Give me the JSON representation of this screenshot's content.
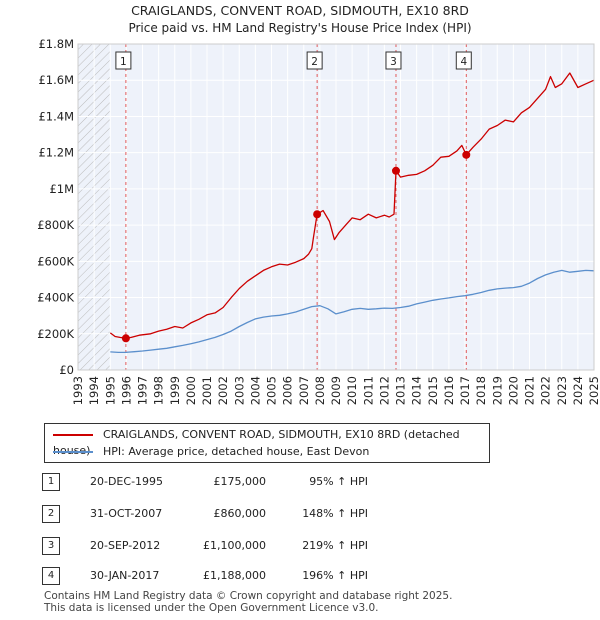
{
  "chart_data": {
    "type": "line",
    "title": "CRAIGLANDS, CONVENT ROAD, SIDMOUTH, EX10 8RD",
    "subtitle": "Price paid vs. HM Land Registry's House Price Index (HPI)",
    "xlabel": "",
    "ylabel": "",
    "xlim": [
      1993,
      2025
    ],
    "ylim": [
      0,
      1800000
    ],
    "grid": true,
    "x_ticks": [
      "1993",
      "1994",
      "1995",
      "1996",
      "1997",
      "1998",
      "1999",
      "2000",
      "2001",
      "2002",
      "2003",
      "2004",
      "2005",
      "2006",
      "2007",
      "2008",
      "2009",
      "2010",
      "2011",
      "2012",
      "2013",
      "2014",
      "2015",
      "2016",
      "2017",
      "2018",
      "2019",
      "2020",
      "2021",
      "2022",
      "2023",
      "2024",
      "2025"
    ],
    "y_ticks": [
      {
        "value": 0,
        "label": "£0"
      },
      {
        "value": 200000,
        "label": "£200K"
      },
      {
        "value": 400000,
        "label": "£400K"
      },
      {
        "value": 600000,
        "label": "£600K"
      },
      {
        "value": 800000,
        "label": "£800K"
      },
      {
        "value": 1000000,
        "label": "£1M"
      },
      {
        "value": 1200000,
        "label": "£1.2M"
      },
      {
        "value": 1400000,
        "label": "£1.4M"
      },
      {
        "value": 1600000,
        "label": "£1.6M"
      },
      {
        "value": 1800000,
        "label": "£1.8M"
      }
    ],
    "hatched_until": 1995,
    "series": [
      {
        "name": "CRAIGLANDS, CONVENT ROAD, SIDMOUTH, EX10 8RD (detached house)",
        "color": "#cc0000",
        "x": [
          1995.0,
          1995.3,
          1995.6,
          1995.97,
          1996.3,
          1996.8,
          1997.5,
          1998.0,
          1998.5,
          1999.0,
          1999.5,
          2000.0,
          2000.5,
          2001.0,
          2001.5,
          2002.0,
          2002.5,
          2003.0,
          2003.5,
          2004.0,
          2004.5,
          2005.0,
          2005.5,
          2006.0,
          2006.5,
          2007.0,
          2007.3,
          2007.5,
          2007.6,
          2007.83,
          2008.2,
          2008.6,
          2008.9,
          2009.2,
          2009.6,
          2010.0,
          2010.5,
          2011.0,
          2011.5,
          2012.0,
          2012.3,
          2012.6,
          2012.72,
          2013.0,
          2013.5,
          2014.0,
          2014.5,
          2015.0,
          2015.5,
          2016.0,
          2016.5,
          2016.8,
          2017.08,
          2017.5,
          2018.0,
          2018.5,
          2019.0,
          2019.5,
          2020.0,
          2020.5,
          2021.0,
          2021.5,
          2022.0,
          2022.3,
          2022.6,
          2023.0,
          2023.5,
          2024.0,
          2024.5,
          2025.0
        ],
        "values": [
          205000,
          185000,
          180000,
          175000,
          180000,
          192000,
          200000,
          215000,
          225000,
          240000,
          232000,
          260000,
          280000,
          305000,
          315000,
          345000,
          400000,
          450000,
          490000,
          520000,
          550000,
          570000,
          585000,
          580000,
          595000,
          615000,
          640000,
          670000,
          730000,
          860000,
          880000,
          820000,
          720000,
          760000,
          800000,
          840000,
          830000,
          860000,
          840000,
          855000,
          845000,
          860000,
          1100000,
          1065000,
          1075000,
          1080000,
          1100000,
          1130000,
          1175000,
          1180000,
          1210000,
          1240000,
          1188000,
          1230000,
          1275000,
          1330000,
          1350000,
          1380000,
          1370000,
          1420000,
          1450000,
          1500000,
          1550000,
          1620000,
          1560000,
          1580000,
          1640000,
          1560000,
          1580000,
          1600000
        ]
      },
      {
        "name": "HPI: Average price, detached house, East Devon",
        "color": "#5b8fcc",
        "x": [
          1995.0,
          1995.5,
          1996.0,
          1996.5,
          1997.0,
          1997.5,
          1998.0,
          1998.5,
          1999.0,
          1999.5,
          2000.0,
          2000.5,
          2001.0,
          2001.5,
          2002.0,
          2002.5,
          2003.0,
          2003.5,
          2004.0,
          2004.5,
          2005.0,
          2005.5,
          2006.0,
          2006.5,
          2007.0,
          2007.5,
          2008.0,
          2008.5,
          2009.0,
          2009.5,
          2010.0,
          2010.5,
          2011.0,
          2011.5,
          2012.0,
          2012.5,
          2013.0,
          2013.5,
          2014.0,
          2014.5,
          2015.0,
          2015.5,
          2016.0,
          2016.5,
          2017.0,
          2017.5,
          2018.0,
          2018.5,
          2019.0,
          2019.5,
          2020.0,
          2020.5,
          2021.0,
          2021.5,
          2022.0,
          2022.5,
          2023.0,
          2023.5,
          2024.0,
          2024.5,
          2025.0
        ],
        "values": [
          100000,
          97000,
          98000,
          101000,
          105000,
          110000,
          115000,
          120000,
          128000,
          136000,
          145000,
          155000,
          168000,
          180000,
          196000,
          215000,
          240000,
          262000,
          282000,
          292000,
          298000,
          302000,
          310000,
          320000,
          335000,
          350000,
          355000,
          338000,
          310000,
          322000,
          335000,
          340000,
          335000,
          338000,
          342000,
          340000,
          345000,
          352000,
          365000,
          375000,
          385000,
          392000,
          398000,
          405000,
          410000,
          418000,
          428000,
          440000,
          448000,
          452000,
          455000,
          462000,
          480000,
          505000,
          525000,
          540000,
          550000,
          540000,
          545000,
          550000,
          548000
        ]
      }
    ],
    "annotations": [
      {
        "label": "1",
        "x": 1995.97,
        "y": 175000
      },
      {
        "label": "2",
        "x": 2007.83,
        "y": 860000
      },
      {
        "label": "3",
        "x": 2012.72,
        "y": 1100000
      },
      {
        "label": "4",
        "x": 2017.08,
        "y": 1188000
      }
    ]
  },
  "legend": {
    "property_label": "CRAIGLANDS, CONVENT ROAD, SIDMOUTH, EX10 8RD (detached house)",
    "hpi_label": "HPI: Average price, detached house, East Devon",
    "property_color": "#cc0000",
    "hpi_color": "#5b8fcc"
  },
  "transactions": [
    {
      "num": "1",
      "date": "20-DEC-1995",
      "price": "£175,000",
      "hpi": "95% ↑ HPI"
    },
    {
      "num": "2",
      "date": "31-OCT-2007",
      "price": "£860,000",
      "hpi": "148% ↑ HPI"
    },
    {
      "num": "3",
      "date": "20-SEP-2012",
      "price": "£1,100,000",
      "hpi": "219% ↑ HPI"
    },
    {
      "num": "4",
      "date": "30-JAN-2017",
      "price": "£1,188,000",
      "hpi": "196% ↑ HPI"
    }
  ],
  "footer": {
    "line1": "Contains HM Land Registry data © Crown copyright and database right 2025.",
    "line2": "This data is licensed under the Open Government Licence v3.0."
  }
}
